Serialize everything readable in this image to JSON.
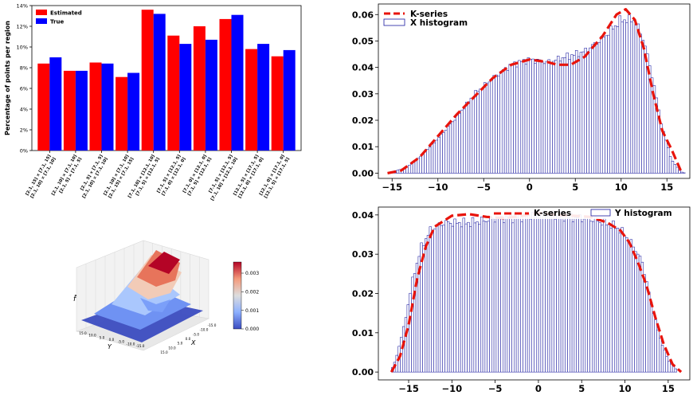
{
  "colors": {
    "estimated": "#ff0000",
    "true": "#0000ff",
    "kseries": "#e8140c",
    "hist_edge": "#1a1aa0"
  },
  "chart_data": [
    {
      "type": "bar",
      "ylabel": "Percentage of points per region",
      "ylim": [
        0,
        14
      ],
      "yticks": [
        "0%",
        "2%",
        "4%",
        "6%",
        "8%",
        "10%",
        "12%",
        "14%"
      ],
      "categories": [
        [
          "[2.1, 15] × [7.1, 15]",
          "[2.1, 10] × [7.1, 10]"
        ],
        [
          "[2.1, 10] × [7.1, 10]",
          "[2.1, 5] × [7.1, 5]"
        ],
        [
          "[2.1, 5] × [7.1, 5]",
          "[2.1, 10] × [7.1, 10]"
        ],
        [
          "[2.1, 10] × [7.1, 10]",
          "[2.1, 15] × [7.1, 15]"
        ],
        [
          "[7.1, 10] × [12.1, 10]",
          "[7.1, 5] × [12.1, 5]"
        ],
        [
          "[7.1, 5] × [12.1, 5]",
          "[7.1, 0] × [12.1, 0]"
        ],
        [
          "[7.1, 0] × [12.1, 0]",
          "[7.1, 5] × [12.1, 5]"
        ],
        [
          "[7.1, 5] × [12.1, 5]",
          "[7.1, 10] × [12.1, 10]"
        ],
        [
          "[12.1, 5] × [17.1, 5]",
          "[12.1, 0] × [17.1, 0]"
        ],
        [
          "[12.1, 0] × [17.1, 0]",
          "[12.1, 5] × [17.1, 5]"
        ]
      ],
      "series": [
        {
          "name": "Estimated",
          "values": [
            8.4,
            7.7,
            8.5,
            7.1,
            13.6,
            11.1,
            12.0,
            12.7,
            9.8,
            9.1
          ]
        },
        {
          "name": "True",
          "values": [
            9.0,
            7.7,
            8.4,
            7.5,
            13.2,
            10.3,
            10.7,
            13.1,
            10.3,
            9.7
          ]
        }
      ],
      "legend": "top-left"
    },
    {
      "type": "surface",
      "zlabel": "f̂",
      "xlabel": "X",
      "ylabel": "Y",
      "xticks": [
        "-15.0",
        "-10.0",
        "-5.0",
        "0.0",
        "5.0",
        "10.0",
        "15.0"
      ],
      "yticks": [
        "15.0",
        "10.0",
        "5.0",
        "0.0",
        "-5.0",
        "-10.0",
        "-15.0"
      ],
      "colorbar": {
        "ticks": [
          "0.000",
          "0.001",
          "0.002",
          "0.003"
        ],
        "range": [
          0,
          0.0036
        ]
      }
    },
    {
      "type": "histogram",
      "legend_kseries": "K-series",
      "legend_hist": "X histogram",
      "legend": "top-left",
      "xlim": [
        -16.5,
        17.5
      ],
      "ylim": [
        -0.002,
        0.064
      ],
      "xticks": [
        -15,
        -10,
        -5,
        0,
        5,
        10,
        15
      ],
      "yticks": [
        "0.00",
        "0.01",
        "0.02",
        "0.03",
        "0.04",
        "0.05",
        "0.06"
      ],
      "hist_range": [
        -15,
        17
      ],
      "bins": 128,
      "density_pts": [
        [
          -15,
          0.0005
        ],
        [
          -13.5,
          0.002
        ],
        [
          -12,
          0.006
        ],
        [
          -10,
          0.013
        ],
        [
          -8,
          0.021
        ],
        [
          -6,
          0.03
        ],
        [
          -4,
          0.036
        ],
        [
          -2,
          0.041
        ],
        [
          0,
          0.043
        ],
        [
          2,
          0.042
        ],
        [
          4,
          0.044
        ],
        [
          6,
          0.046
        ],
        [
          8,
          0.051
        ],
        [
          10,
          0.058
        ],
        [
          11.5,
          0.058
        ],
        [
          12.5,
          0.05
        ],
        [
          13.5,
          0.035
        ],
        [
          14.5,
          0.017
        ],
        [
          15.5,
          0.005
        ],
        [
          16.5,
          0.0005
        ],
        [
          17,
          0.0
        ]
      ],
      "kseries_pts": [
        [
          -15.5,
          0.0
        ],
        [
          -14,
          0.001
        ],
        [
          -12,
          0.006
        ],
        [
          -10,
          0.014
        ],
        [
          -8,
          0.022
        ],
        [
          -6,
          0.029
        ],
        [
          -4,
          0.036
        ],
        [
          -2,
          0.041
        ],
        [
          0,
          0.043
        ],
        [
          2,
          0.042
        ],
        [
          3,
          0.041
        ],
        [
          4.5,
          0.041
        ],
        [
          6,
          0.044
        ],
        [
          8,
          0.052
        ],
        [
          9.5,
          0.06
        ],
        [
          10.5,
          0.062
        ],
        [
          11.5,
          0.058
        ],
        [
          12.5,
          0.047
        ],
        [
          13.5,
          0.03
        ],
        [
          14.5,
          0.016
        ],
        [
          15.5,
          0.009
        ],
        [
          16.5,
          0.001
        ]
      ]
    },
    {
      "type": "histogram",
      "legend_kseries": "K-series",
      "legend_hist": "Y histogram",
      "legend": "top",
      "xlim": [
        -18.5,
        17.5
      ],
      "ylim": [
        -0.002,
        0.042
      ],
      "xticks": [
        -15,
        -10,
        -5,
        0,
        5,
        10,
        15
      ],
      "yticks": [
        "0.00",
        "0.01",
        "0.02",
        "0.03",
        "0.04"
      ],
      "hist_range": [
        -17,
        16
      ],
      "bins": 128,
      "density_pts": [
        [
          -17,
          0.0005
        ],
        [
          -16.5,
          0.003
        ],
        [
          -15.5,
          0.012
        ],
        [
          -14.5,
          0.024
        ],
        [
          -13.5,
          0.032
        ],
        [
          -12.5,
          0.036
        ],
        [
          -11,
          0.038
        ],
        [
          -8,
          0.038
        ],
        [
          -5,
          0.039
        ],
        [
          -2,
          0.0395
        ],
        [
          0,
          0.0405
        ],
        [
          3,
          0.0395
        ],
        [
          6,
          0.039
        ],
        [
          9,
          0.037
        ],
        [
          10,
          0.035
        ],
        [
          11,
          0.032
        ],
        [
          12,
          0.028
        ],
        [
          13,
          0.018
        ],
        [
          14,
          0.009
        ],
        [
          15,
          0.003
        ],
        [
          16,
          0.0005
        ]
      ],
      "kseries_pts": [
        [
          -17,
          0.0
        ],
        [
          -16,
          0.004
        ],
        [
          -15,
          0.012
        ],
        [
          -14,
          0.024
        ],
        [
          -13,
          0.032
        ],
        [
          -12,
          0.037
        ],
        [
          -10,
          0.0398
        ],
        [
          -8,
          0.0402
        ],
        [
          -6,
          0.0395
        ],
        [
          -4,
          0.0392
        ],
        [
          -2,
          0.0397
        ],
        [
          0,
          0.0405
        ],
        [
          2,
          0.04
        ],
        [
          4,
          0.0398
        ],
        [
          6,
          0.0395
        ],
        [
          8,
          0.038
        ],
        [
          9.5,
          0.036
        ],
        [
          10.5,
          0.033
        ],
        [
          11.5,
          0.028
        ],
        [
          12.5,
          0.022
        ],
        [
          13.5,
          0.014
        ],
        [
          14.5,
          0.007
        ],
        [
          15.5,
          0.002
        ],
        [
          16.5,
          0.0
        ]
      ]
    }
  ]
}
